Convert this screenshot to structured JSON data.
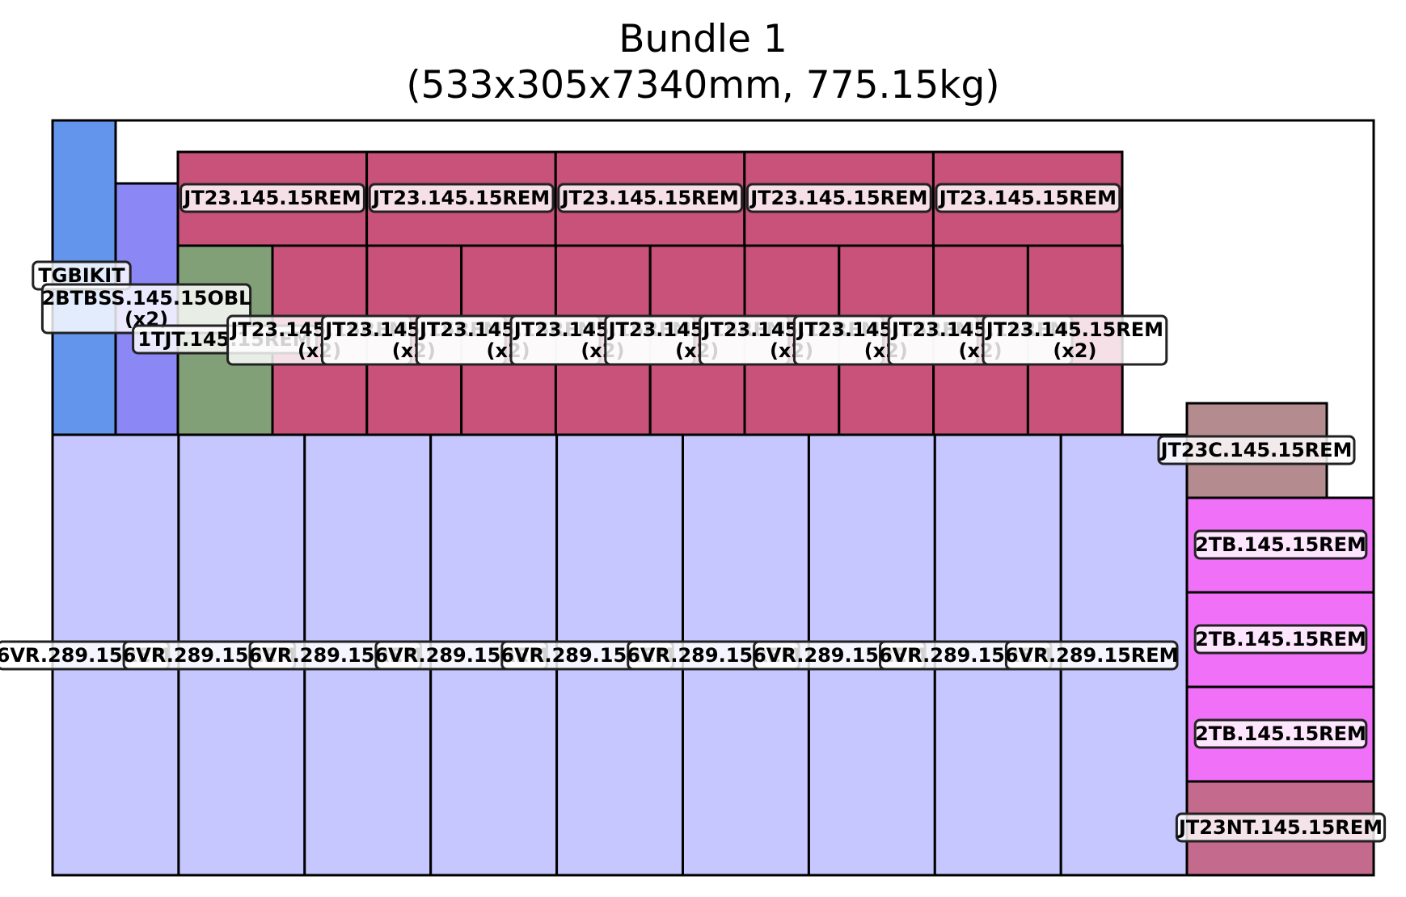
{
  "title": {
    "line1": "Bundle 1",
    "line2": "(533x305x7340mm, 775.15kg)"
  },
  "colors": {
    "outline": "#000000",
    "tgbikit": "#6495ED",
    "bss": "#8B87F5",
    "tjt": "#82A077",
    "rem_crimson": "#C8527A",
    "vr_lavender": "#C7C7FF",
    "jt23c": "#B48C90",
    "tb_magenta": "#F070F8",
    "jt23nt": "#C46A8C",
    "label_bg": "#FFFFFF",
    "label_border": "#222222"
  },
  "parts": [
    {
      "id": "TGBIKIT",
      "label": "TGBIKIT",
      "qty_text": ""
    },
    {
      "id": "2BTBSS.145.15OBL",
      "label": "2BTBSS.145.15OBL",
      "qty_text": "(x2)"
    },
    {
      "id": "1TJT.145.15REM",
      "label": "1TJT.145.15REM",
      "qty_text": ""
    },
    {
      "id": "JT23.145.15REM-top",
      "label": "JT23.145.15REM",
      "qty_text": "",
      "count": 5
    },
    {
      "id": "JT23.145.15REM-mid",
      "label": "JT23.145.15REM",
      "qty_text": "(x2)",
      "count": 9
    },
    {
      "id": "6VR.289.15REM",
      "label": "6VR.289.15REM",
      "qty_text": "",
      "count": 9
    },
    {
      "id": "JT23C.145.15REM",
      "label": "JT23C.145.15REM",
      "qty_text": ""
    },
    {
      "id": "2TB.145.15REM",
      "label": "2TB.145.15REM",
      "qty_text": "",
      "count": 3
    },
    {
      "id": "JT23NT.145.15REM",
      "label": "JT23NT.145.15REM",
      "qty_text": ""
    }
  ]
}
